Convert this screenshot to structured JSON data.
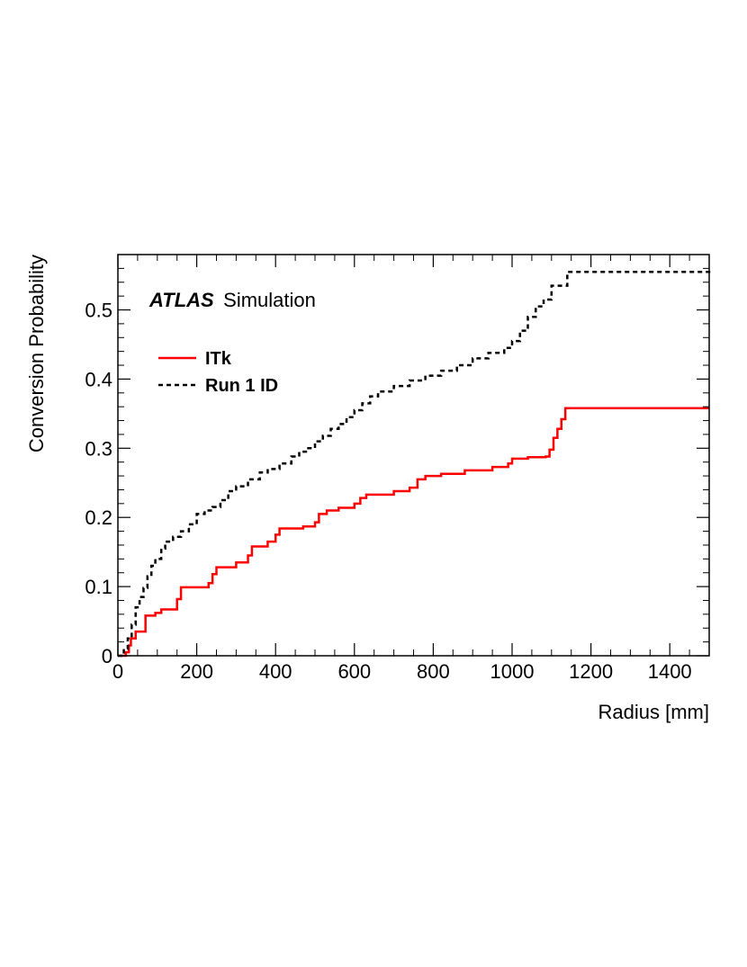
{
  "chart_data": {
    "type": "line",
    "step": true,
    "title": "",
    "experiment": "ATLAS",
    "experiment_label": "Simulation",
    "xlabel": "Radius [mm]",
    "ylabel": "Conversion Probability",
    "xlim": [
      0,
      1500
    ],
    "ylim": [
      0,
      0.58
    ],
    "x_ticks": [
      0,
      200,
      400,
      600,
      800,
      1000,
      1200,
      1400
    ],
    "y_ticks": [
      0,
      0.1,
      0.2,
      0.3,
      0.4,
      0.5
    ],
    "x_tick_labels": [
      "0",
      "200",
      "400",
      "600",
      "800",
      "1000",
      "1200",
      "1400"
    ],
    "y_tick_labels": [
      "0",
      "0.1",
      "0.2",
      "0.3",
      "0.4",
      "0.5"
    ],
    "legend_position": "top-left",
    "series": [
      {
        "name": "ITk",
        "color": "#ff0000",
        "style": "solid",
        "x": [
          0,
          20,
          28,
          33,
          45,
          70,
          95,
          110,
          150,
          160,
          230,
          240,
          250,
          300,
          330,
          340,
          380,
          400,
          410,
          470,
          500,
          510,
          530,
          560,
          600,
          615,
          630,
          700,
          740,
          760,
          780,
          820,
          880,
          950,
          990,
          1000,
          1040,
          1085,
          1095,
          1105,
          1115,
          1125,
          1135,
          1500
        ],
        "y": [
          0.0,
          0.005,
          0.015,
          0.025,
          0.035,
          0.058,
          0.062,
          0.067,
          0.082,
          0.099,
          0.105,
          0.118,
          0.128,
          0.135,
          0.145,
          0.158,
          0.165,
          0.175,
          0.184,
          0.187,
          0.193,
          0.205,
          0.21,
          0.214,
          0.22,
          0.228,
          0.233,
          0.238,
          0.243,
          0.255,
          0.26,
          0.263,
          0.268,
          0.273,
          0.278,
          0.285,
          0.287,
          0.288,
          0.298,
          0.315,
          0.328,
          0.342,
          0.358,
          0.358
        ]
      },
      {
        "name": "Run 1 ID",
        "color": "#000000",
        "style": "dashed",
        "x": [
          0,
          15,
          25,
          35,
          45,
          55,
          65,
          75,
          85,
          95,
          110,
          120,
          140,
          160,
          180,
          200,
          220,
          240,
          260,
          280,
          300,
          330,
          360,
          380,
          410,
          440,
          460,
          480,
          500,
          520,
          540,
          560,
          580,
          600,
          620,
          640,
          660,
          700,
          740,
          780,
          820,
          860,
          900,
          940,
          980,
          1000,
          1020,
          1040,
          1060,
          1080,
          1100,
          1140,
          1500
        ],
        "y": [
          0.0,
          0.01,
          0.025,
          0.045,
          0.07,
          0.085,
          0.098,
          0.115,
          0.13,
          0.14,
          0.155,
          0.165,
          0.172,
          0.18,
          0.19,
          0.205,
          0.21,
          0.215,
          0.225,
          0.238,
          0.245,
          0.255,
          0.265,
          0.27,
          0.278,
          0.288,
          0.295,
          0.3,
          0.31,
          0.318,
          0.328,
          0.335,
          0.345,
          0.355,
          0.365,
          0.375,
          0.382,
          0.39,
          0.398,
          0.405,
          0.412,
          0.42,
          0.43,
          0.438,
          0.445,
          0.455,
          0.47,
          0.49,
          0.505,
          0.515,
          0.535,
          0.555,
          0.558
        ]
      }
    ]
  }
}
